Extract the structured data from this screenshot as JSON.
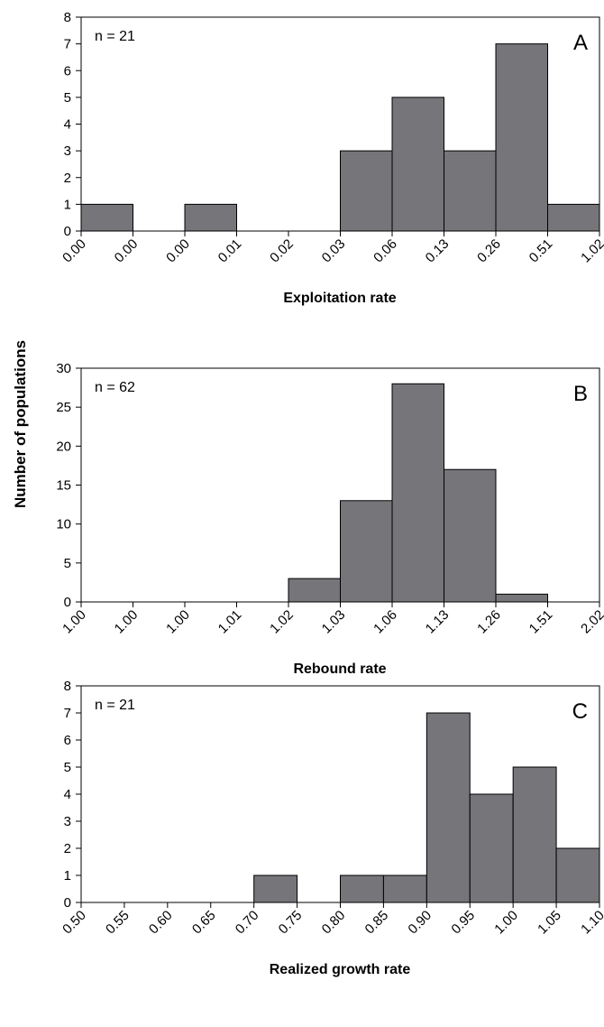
{
  "figure": {
    "ylabel": "Number of populations"
  },
  "chart_data": [
    {
      "type": "bar",
      "panel_letter": "A",
      "annotation": "n = 21",
      "xlabel": "Exploitation rate",
      "ylabel": "Number of populations",
      "ylim": [
        0,
        8
      ],
      "yticks": [
        0,
        1,
        2,
        3,
        4,
        5,
        6,
        7,
        8
      ],
      "x_tick_labels": [
        "0.00",
        "0.00",
        "0.00",
        "0.01",
        "0.02",
        "0.03",
        "0.06",
        "0.13",
        "0.26",
        "0.51",
        "1.02"
      ],
      "values": [
        1,
        0,
        1,
        0,
        0,
        3,
        5,
        3,
        7,
        1
      ],
      "bar_color": "#75757a",
      "grid": false
    },
    {
      "type": "bar",
      "panel_letter": "B",
      "annotation": "n = 62",
      "xlabel": "Rebound rate",
      "ylabel": "Number of populations",
      "ylim": [
        0,
        30
      ],
      "yticks": [
        0,
        5,
        10,
        15,
        20,
        25,
        30
      ],
      "x_tick_labels": [
        "1.00",
        "1.00",
        "1.00",
        "1.01",
        "1.02",
        "1.03",
        "1.06",
        "1.13",
        "1.26",
        "1.51",
        "2.02"
      ],
      "values": [
        0,
        0,
        0,
        0,
        3,
        13,
        28,
        17,
        1,
        0
      ],
      "bar_color": "#75757a",
      "grid": false
    },
    {
      "type": "bar",
      "panel_letter": "C",
      "annotation": "n = 21",
      "xlabel": "Realized growth rate",
      "ylabel": "Number of populations",
      "ylim": [
        0,
        8
      ],
      "yticks": [
        0,
        1,
        2,
        3,
        4,
        5,
        6,
        7,
        8
      ],
      "x_tick_labels": [
        "0.50",
        "0.55",
        "0.60",
        "0.65",
        "0.70",
        "0.75",
        "0.80",
        "0.85",
        "0.90",
        "0.95",
        "1.00",
        "1.05",
        "1.10"
      ],
      "values": [
        0,
        0,
        0,
        0,
        1,
        0,
        1,
        1,
        7,
        4,
        5,
        2
      ],
      "bar_color": "#75757a",
      "grid": false
    }
  ]
}
